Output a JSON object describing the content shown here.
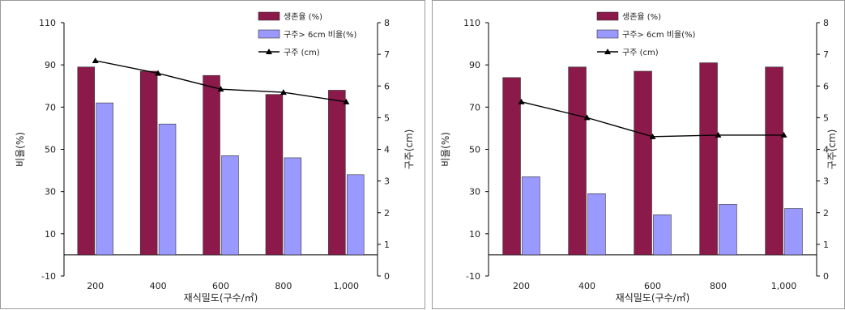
{
  "chart_data": [
    {
      "type": "bar",
      "categories": [
        "200",
        "400",
        "600",
        "800",
        "1,000"
      ],
      "xlabel": "재식밀도(구수/㎡)",
      "ylabel": "비율(%)",
      "y2label": "구주(cm)",
      "ylim": [
        -10,
        110
      ],
      "yticks": [
        "110",
        "90",
        "70",
        "50",
        "30",
        "10",
        "-10"
      ],
      "y2lim": [
        0,
        8
      ],
      "y2ticks": [
        "8",
        "7",
        "6",
        "5",
        "4",
        "3",
        "2",
        "1",
        "0"
      ],
      "series": [
        {
          "name": "생존율 (%)",
          "type": "bar",
          "axis": "left",
          "color": "#8b1a4a",
          "values": [
            89,
            87,
            85,
            76,
            78
          ]
        },
        {
          "name": "구주> 6cm 비율(%)",
          "type": "bar",
          "axis": "left",
          "color": "#9999ff",
          "values": [
            72,
            62,
            47,
            46,
            38
          ]
        },
        {
          "name": "구주 (cm)",
          "type": "line",
          "axis": "right",
          "color": "#000000",
          "values": [
            6.8,
            6.4,
            5.9,
            5.8,
            5.5
          ]
        }
      ],
      "grid": false,
      "legend": "top-right"
    },
    {
      "type": "bar",
      "categories": [
        "200",
        "400",
        "600",
        "800",
        "1,000"
      ],
      "xlabel": "재식밀도(구수/㎡)",
      "ylabel": "비율(%)",
      "y2label": "구주(cm)",
      "ylim": [
        -10,
        110
      ],
      "yticks": [
        "110",
        "90",
        "70",
        "50",
        "30",
        "10",
        "-10"
      ],
      "y2lim": [
        0,
        8
      ],
      "y2ticks": [
        "8",
        "7",
        "6",
        "5",
        "4",
        "3",
        "2",
        "1",
        "0"
      ],
      "series": [
        {
          "name": "생존율 (%)",
          "type": "bar",
          "axis": "left",
          "color": "#8b1a4a",
          "values": [
            84,
            89,
            87,
            91,
            89
          ]
        },
        {
          "name": "구주> 6cm 비율(%)",
          "type": "bar",
          "axis": "left",
          "color": "#9999ff",
          "values": [
            37,
            29,
            19,
            24,
            22
          ]
        },
        {
          "name": "구주 (cm)",
          "type": "line",
          "axis": "right",
          "color": "#000000",
          "values": [
            5.5,
            5.0,
            4.4,
            4.45,
            4.45
          ]
        }
      ],
      "grid": false,
      "legend": "top-right"
    }
  ]
}
